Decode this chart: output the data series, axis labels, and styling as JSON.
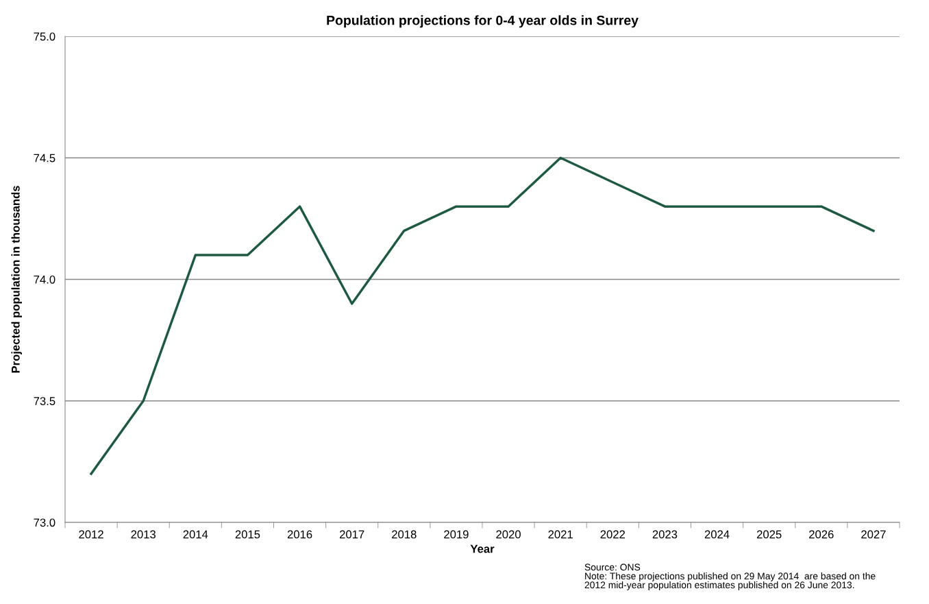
{
  "chart_data": {
    "type": "line",
    "title": "Population projections for 0-4 year olds in Surrey",
    "xlabel": "Year",
    "ylabel": "Projected population in thousands",
    "categories": [
      "2012",
      "2013",
      "2014",
      "2015",
      "2016",
      "2017",
      "2018",
      "2019",
      "2020",
      "2021",
      "2022",
      "2023",
      "2024",
      "2025",
      "2026",
      "2027"
    ],
    "series": [
      {
        "color": "#1e5a41",
        "values": [
          73.2,
          73.5,
          74.1,
          74.1,
          74.3,
          73.9,
          74.2,
          74.3,
          74.3,
          74.5,
          74.4,
          74.3,
          74.3,
          74.3,
          74.3,
          74.2
        ]
      }
    ],
    "ylim": [
      73.0,
      75.0
    ],
    "yticks": [
      {
        "value": 73.0,
        "label": "73.0"
      },
      {
        "value": 73.5,
        "label": "73.5"
      },
      {
        "value": 74.0,
        "label": "74.0"
      },
      {
        "value": 74.5,
        "label": "74.5"
      },
      {
        "value": 75.0,
        "label": "75.0"
      }
    ],
    "grid": "y",
    "legend": false,
    "marker": "none",
    "line_style": "solid",
    "annotations": [
      "Source: ONS",
      "Note: These projections published on 29 May 2014  are based on the\n2012 mid-year population estimates published on 26 June 2013."
    ]
  }
}
